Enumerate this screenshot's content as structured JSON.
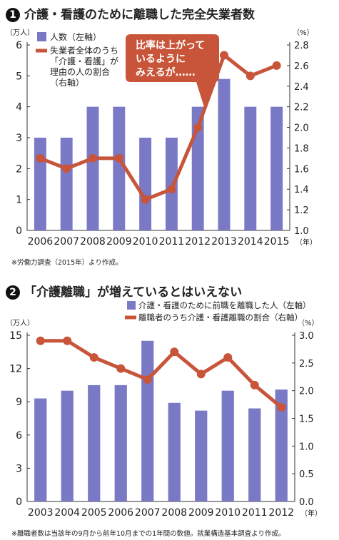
{
  "colors": {
    "bar": "#7a79c6",
    "line": "#c8553a",
    "axis": "#333333",
    "callout": "#c8553a"
  },
  "chart_data": [
    {
      "type": "bar",
      "number": "1",
      "title": "介護・看護のために離職した完全失業者数",
      "left_unit": "（万人）",
      "right_unit": "（%）",
      "year_suffix": "（年）",
      "categories": [
        "2006",
        "2007",
        "2008",
        "2009",
        "2010",
        "2011",
        "2012",
        "2013",
        "2014",
        "2015"
      ],
      "yticks_left": [
        "0",
        "1",
        "2",
        "3",
        "4",
        "5",
        "6"
      ],
      "yticks_right": [
        "1.0",
        "1.2",
        "1.4",
        "1.6",
        "1.8",
        "2.0",
        "2.2",
        "2.4",
        "2.6",
        "2.8"
      ],
      "ylim_left": [
        0,
        6
      ],
      "ylim_right": [
        1.0,
        2.8
      ],
      "series": [
        {
          "name": "人数（左軸）",
          "axis": "left",
          "kind": "bar",
          "values": [
            3,
            3,
            4,
            4,
            3,
            3,
            4,
            4.9,
            4,
            4
          ]
        },
        {
          "name": "失業者全体のうち「介護・看護」が理由の人の割合（右軸）",
          "axis": "right",
          "kind": "line",
          "values": [
            1.7,
            1.6,
            1.7,
            1.7,
            1.3,
            1.4,
            2.0,
            2.7,
            2.5,
            2.6
          ]
        }
      ],
      "legend": {
        "bar": "人数（左軸）",
        "line_lines": [
          "失業者全体のうち",
          "「介護・看護」が",
          "理由の人の割合",
          "（右軸）"
        ]
      },
      "callout_lines": [
        "比率は上がって",
        "いるように",
        "みえるが……"
      ],
      "note": "※労働力調査（2015年）より作成。"
    },
    {
      "type": "bar",
      "number": "2",
      "title": "「介護離職」が増えているとはいえない",
      "left_unit": "（万人）",
      "right_unit": "（%）",
      "year_suffix": "（年）",
      "categories": [
        "2003",
        "2004",
        "2005",
        "2006",
        "2007",
        "2008",
        "2009",
        "2010",
        "2011",
        "2012"
      ],
      "yticks_left": [
        "0",
        "3",
        "6",
        "9",
        "12",
        "15"
      ],
      "yticks_right": [
        "0.0",
        "0.5",
        "1.0",
        "1.5",
        "2.0",
        "2.5",
        "3.0"
      ],
      "ylim_left": [
        0,
        15
      ],
      "ylim_right": [
        0,
        3.0
      ],
      "series": [
        {
          "name": "介護・看護のために前職を離職した人（左軸）",
          "axis": "left",
          "kind": "bar",
          "values": [
            9.3,
            10.0,
            10.5,
            10.5,
            14.5,
            8.9,
            8.2,
            10.0,
            8.4,
            10.1
          ]
        },
        {
          "name": "離職者のうち介護・看護離職の割合（右軸）",
          "axis": "right",
          "kind": "line",
          "values": [
            2.9,
            2.9,
            2.6,
            2.4,
            2.2,
            2.7,
            2.3,
            2.6,
            2.1,
            1.7
          ]
        }
      ],
      "note": "※離職者数は当該年の9月から前年10月までの1年間の数値。就業構造基本調査より作成。"
    }
  ]
}
